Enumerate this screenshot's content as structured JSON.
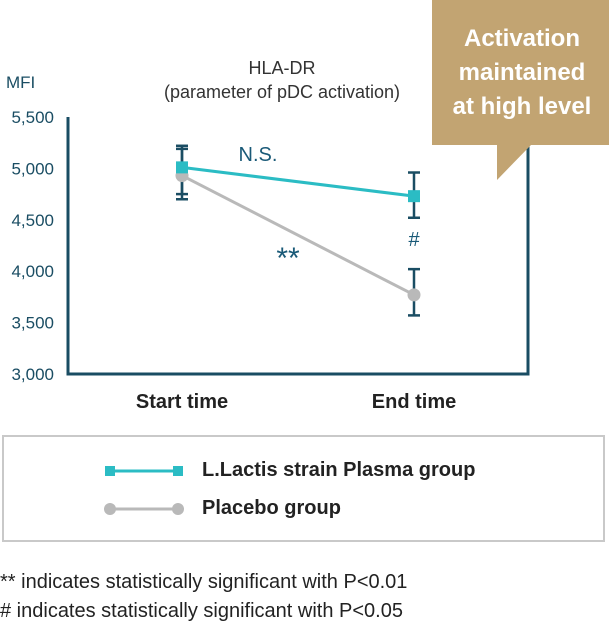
{
  "chart_data": {
    "type": "line",
    "title": [
      "HLA-DR",
      "(parameter of pDC activation)"
    ],
    "ylabel": "MFI",
    "xlabel": "",
    "categories": [
      "Start time",
      "End time"
    ],
    "ylim": [
      3000,
      5500
    ],
    "yticks": [
      3000,
      3500,
      4000,
      4500,
      5000,
      5500
    ],
    "ytick_labels": [
      "3,000",
      "3,500",
      "4,000",
      "4,500",
      "5,000",
      "5,500"
    ],
    "grid": false,
    "series": [
      {
        "name": "L.Lactis strain Plasma group",
        "color": "#2bbcc4",
        "marker": "square",
        "values": [
          5010,
          4730
        ],
        "err_low": [
          4750,
          4520
        ],
        "err_high": [
          5220,
          4960
        ]
      },
      {
        "name": "Placebo group",
        "color": "#b9b9b9",
        "marker": "circle",
        "values": [
          4930,
          3770
        ],
        "err_low": [
          4700,
          3570
        ],
        "err_high": [
          5190,
          4020
        ]
      }
    ],
    "annotations": {
      "ns": "N.S.",
      "star": "**",
      "hash": "#"
    },
    "callout": [
      "Activation",
      "maintained",
      "at high level"
    ],
    "callout_color": "#c2a472",
    "axis_color": "#1a4d63",
    "errorbar_color": "#1a4d63",
    "legend_position": "below"
  },
  "footnotes": [
    "** indicates statistically significant with P<0.01",
    "# indicates statistically significant with P<0.05"
  ]
}
